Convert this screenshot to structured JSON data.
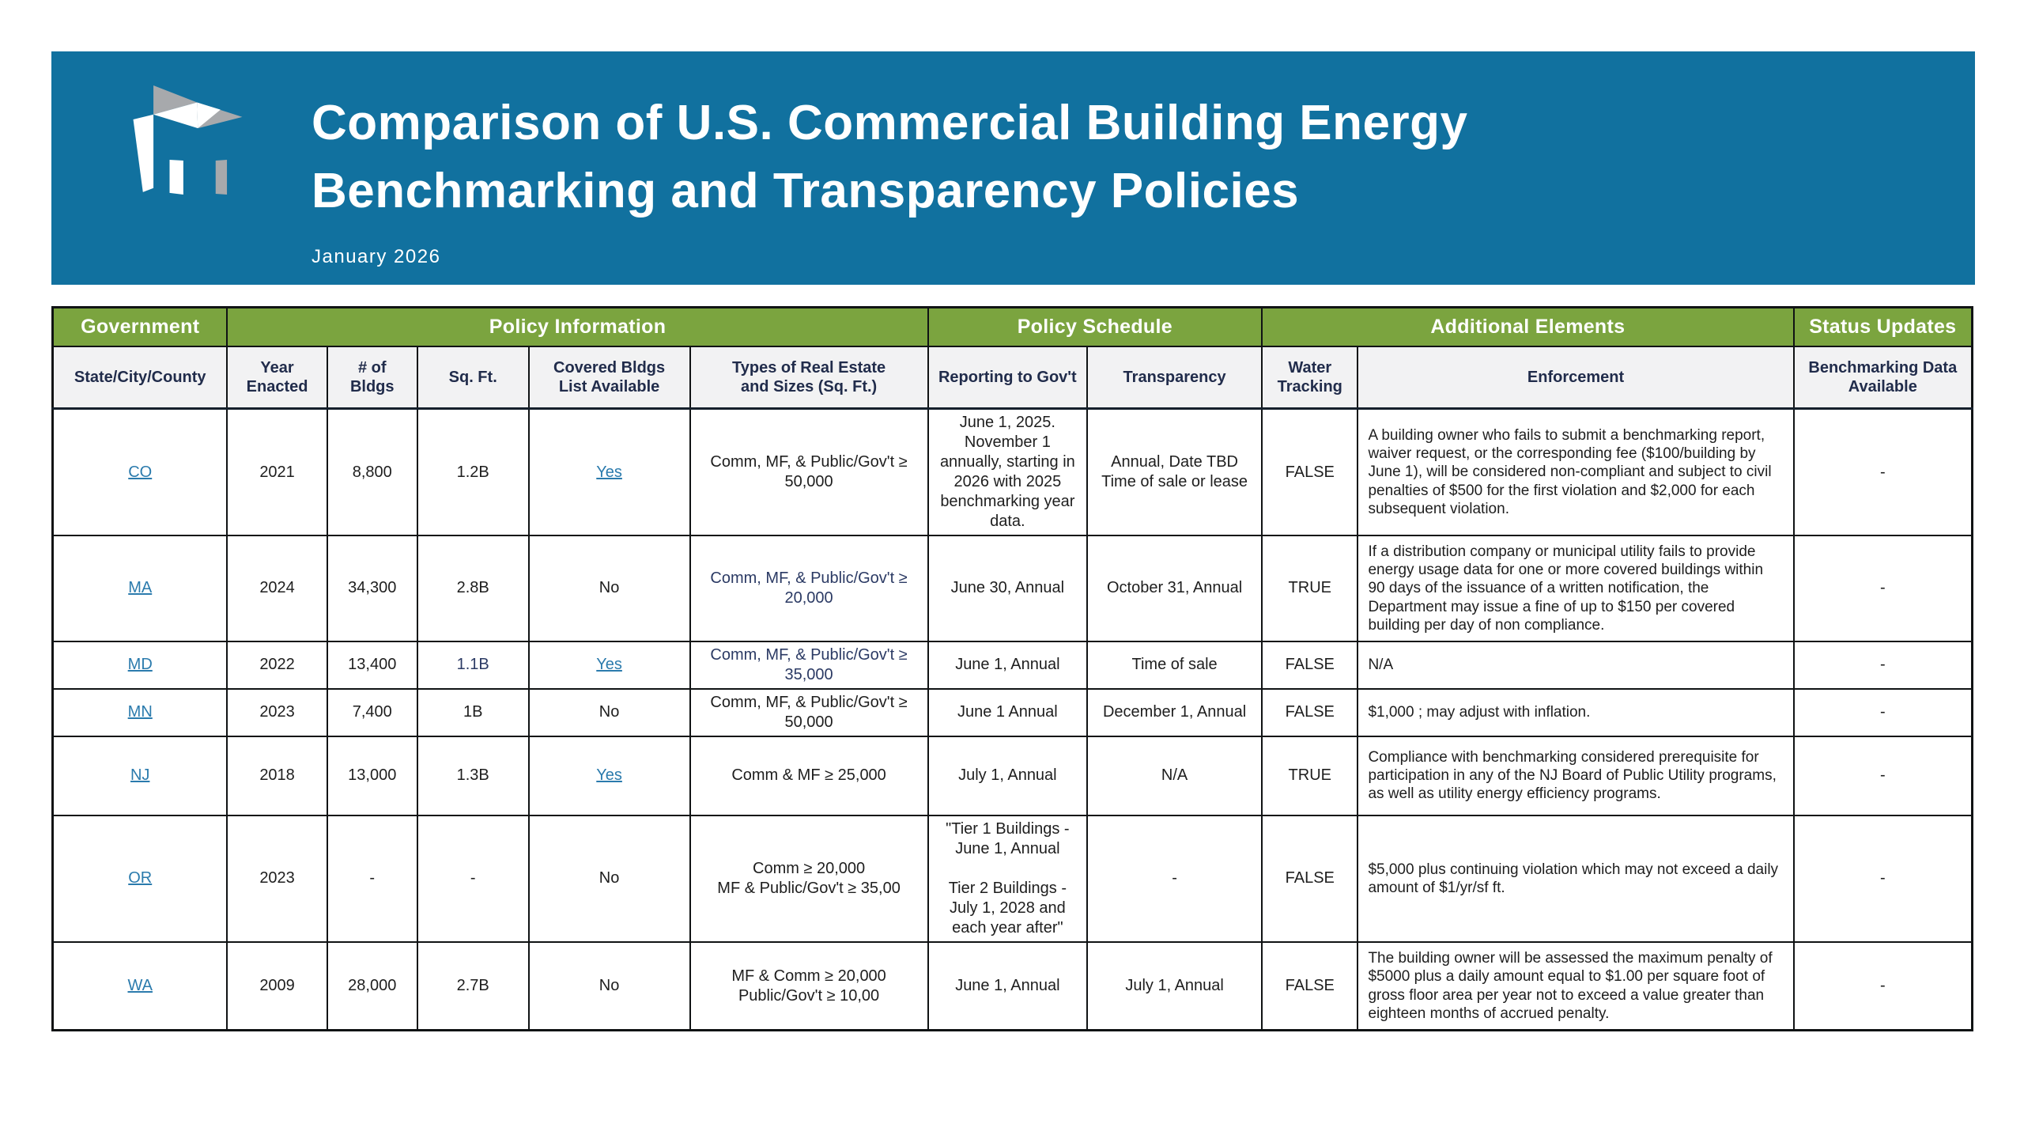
{
  "banner": {
    "title_line1": "Comparison of U.S. Commercial Building Energy",
    "title_line2": "Benchmarking and Transparency Policies",
    "subtitle": "January 2026",
    "bg_color": "#11719F",
    "logo": "building-logo"
  },
  "colors": {
    "header_green": "#7BA43F",
    "banner_blue": "#11719F",
    "link_blue": "#2B7BAD",
    "navy_text": "#2B3A64"
  },
  "table": {
    "group_headers": [
      {
        "label": "Government"
      },
      {
        "label": "Policy Information"
      },
      {
        "label": "Policy Schedule"
      },
      {
        "label": "Additional Elements"
      },
      {
        "label": "Status Updates"
      }
    ],
    "columns": [
      "State/City/County",
      "Year\nEnacted",
      "# of Bldgs",
      "Sq. Ft.",
      "Covered Bldgs\nList Available",
      "Types of Real Estate\nand Sizes (Sq. Ft.)",
      "Reporting to Gov't",
      "Transparency",
      "Water\nTracking",
      "Enforcement",
      "Benchmarking Data\nAvailable"
    ],
    "rows": [
      {
        "state": "CO",
        "year": "2021",
        "bldgs": "8,800",
        "sqft": "1.2B",
        "covered": "Yes",
        "covered_link": true,
        "types": "Comm, MF, & Public/Gov't ≥ 50,000",
        "reporting": "June 1, 2025. November 1 annually, starting in 2026 with 2025 benchmarking year data.",
        "transparency": "Annual, Date TBD\nTime of sale or lease",
        "water": "FALSE",
        "enforcement": "A building owner who fails to submit a benchmarking report, waiver request, or the corresponding fee ($100/building by June 1), will be considered non-compliant and subject to civil penalties of $500 for the first violation and $2,000 for each subsequent violation.",
        "status": "-"
      },
      {
        "state": "MA",
        "year": "2024",
        "bldgs": "34,300",
        "sqft": "2.8B",
        "covered": "No",
        "covered_link": false,
        "types": "Comm, MF, & Public/Gov't ≥ 20,000",
        "types_navy": true,
        "reporting": "June 30, Annual",
        "transparency": "October 31, Annual",
        "water": "TRUE",
        "enforcement": "If a distribution company or municipal utility fails to provide energy usage data for one or more covered buildings within 90 days of the issuance of a written notification, the Department may issue a fine of up to $150 per covered building per day of non compliance.",
        "status": "-"
      },
      {
        "state": "MD",
        "year": "2022",
        "bldgs": "13,400",
        "sqft": "1.1B",
        "sqft_navy": true,
        "covered": "Yes",
        "covered_link": true,
        "types": "Comm, MF, & Public/Gov't ≥ 35,000",
        "types_navy": true,
        "reporting": "June 1, Annual",
        "transparency": "Time of sale",
        "water": "FALSE",
        "enforcement": "N/A",
        "status": "-"
      },
      {
        "state": "MN",
        "year": "2023",
        "bldgs": "7,400",
        "sqft": "1B",
        "covered": "No",
        "covered_link": false,
        "types": "Comm, MF, & Public/Gov't ≥ 50,000",
        "reporting": "June 1 Annual",
        "transparency": "December 1, Annual",
        "water": "FALSE",
        "enforcement": "$1,000 ; may adjust with inflation.",
        "status": "-"
      },
      {
        "state": "NJ",
        "year": "2018",
        "bldgs": "13,000",
        "sqft": "1.3B",
        "covered": "Yes",
        "covered_link": true,
        "types": "Comm & MF ≥ 25,000",
        "reporting": "July 1, Annual",
        "transparency": "N/A",
        "water": "TRUE",
        "enforcement": "Compliance with benchmarking considered prerequisite for participation in any of the NJ Board of Public Utility programs, as well as utility energy efficiency programs.",
        "status": "-"
      },
      {
        "state": "OR",
        "year": "2023",
        "bldgs": "-",
        "sqft": "-",
        "covered": "No",
        "covered_link": false,
        "types": "Comm ≥ 20,000\nMF & Public/Gov't ≥ 35,00",
        "reporting": "\"Tier 1 Buildings -\nJune 1, Annual\n\nTier 2 Buildings -\nJuly 1, 2028 and\neach year after\"",
        "transparency": "-",
        "water": "FALSE",
        "enforcement": "$5,000 plus continuing violation which may not exceed a daily amount of $1/yr/sf ft.",
        "status": "-"
      },
      {
        "state": "WA",
        "year": "2009",
        "bldgs": "28,000",
        "sqft": "2.7B",
        "covered": "No",
        "covered_link": false,
        "types": "MF & Comm ≥ 20,000\nPublic/Gov't ≥ 10,00",
        "reporting": "June 1, Annual",
        "transparency": "July 1, Annual",
        "water": "FALSE",
        "enforcement": "The building owner will be assessed the maximum penalty of $5000 plus a daily amount equal to $1.00 per square foot of gross floor area per year not to exceed a value greater than eighteen months of accrued penalty.",
        "status": "-"
      }
    ]
  }
}
